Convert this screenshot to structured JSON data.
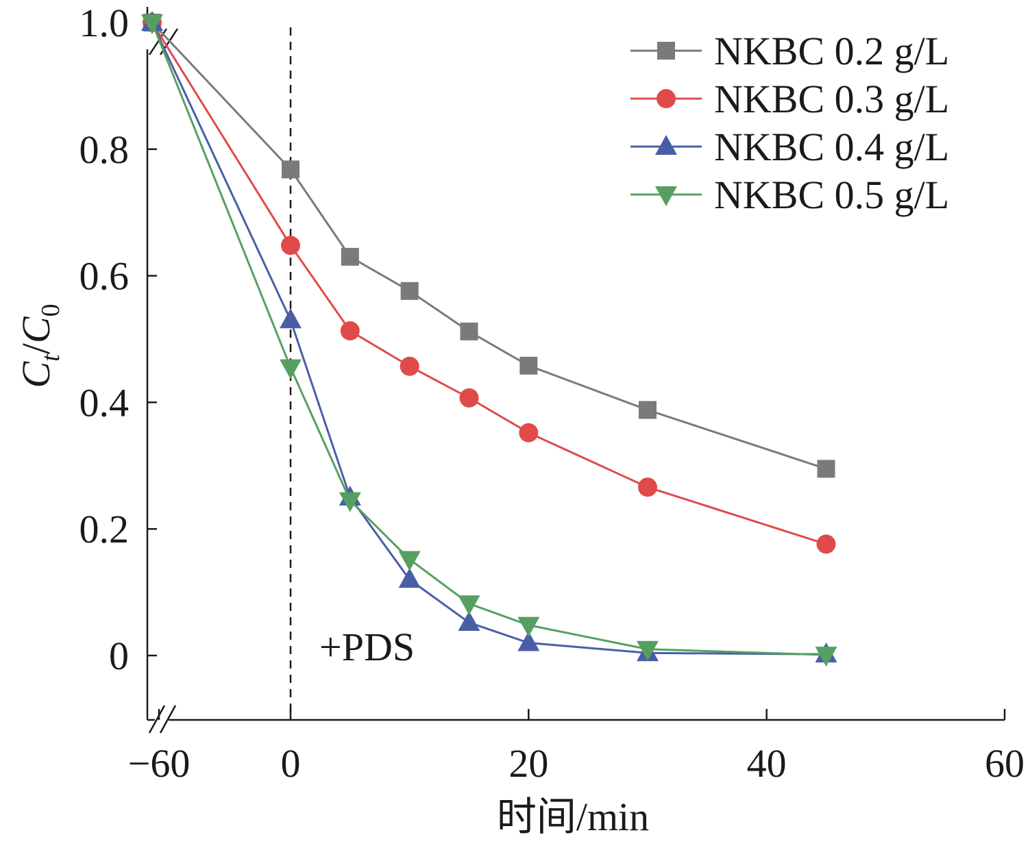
{
  "chart_data": {
    "type": "line",
    "xlabel": "时间/min",
    "ylabel_main": "C",
    "ylabel_sub_t": "t",
    "ylabel_sep": "/",
    "ylabel_main2": "C",
    "ylabel_sub_0": "0",
    "xlim": [
      -60,
      60
    ],
    "ylim": [
      -0.1,
      1.0
    ],
    "x_axis_break": true,
    "y_axis_break": true,
    "xticks": [
      -60,
      0,
      20,
      40,
      60
    ],
    "xtick_labels": [
      "−60",
      "0",
      "20",
      "40",
      "60"
    ],
    "yticks": [
      0,
      0.2,
      0.4,
      0.6,
      0.8,
      1.0
    ],
    "ytick_labels": [
      "0",
      "0.2",
      "0.4",
      "0.6",
      "0.8",
      "1.0"
    ],
    "grid": false,
    "legend_position": "top-right",
    "annotation": {
      "text": "+PDS",
      "x": 0,
      "dashed_vertical_line": true
    },
    "series": [
      {
        "name": "NKBC 0.2 g/L",
        "color": "#7a7a7a",
        "marker": "square",
        "x": [
          -60,
          0,
          5,
          10,
          15,
          20,
          30,
          45
        ],
        "y": [
          1.0,
          0.768,
          0.63,
          0.576,
          0.512,
          0.458,
          0.388,
          0.295
        ]
      },
      {
        "name": "NKBC 0.3 g/L",
        "color": "#e04a4a",
        "marker": "circle",
        "x": [
          -60,
          0,
          5,
          10,
          15,
          20,
          30,
          45
        ],
        "y": [
          1.0,
          0.648,
          0.513,
          0.457,
          0.407,
          0.352,
          0.266,
          0.176
        ]
      },
      {
        "name": "NKBC 0.4 g/L",
        "color": "#4a5ea6",
        "marker": "triangle-up",
        "x": [
          -60,
          0,
          5,
          10,
          15,
          20,
          30,
          45
        ],
        "y": [
          1.0,
          0.53,
          0.25,
          0.12,
          0.052,
          0.02,
          0.004,
          0.002
        ]
      },
      {
        "name": "NKBC 0.5 g/L",
        "color": "#55a060",
        "marker": "triangle-down",
        "x": [
          -60,
          0,
          5,
          10,
          15,
          20,
          30,
          45
        ],
        "y": [
          1.0,
          0.455,
          0.245,
          0.152,
          0.082,
          0.048,
          0.01,
          0.001
        ]
      }
    ]
  }
}
